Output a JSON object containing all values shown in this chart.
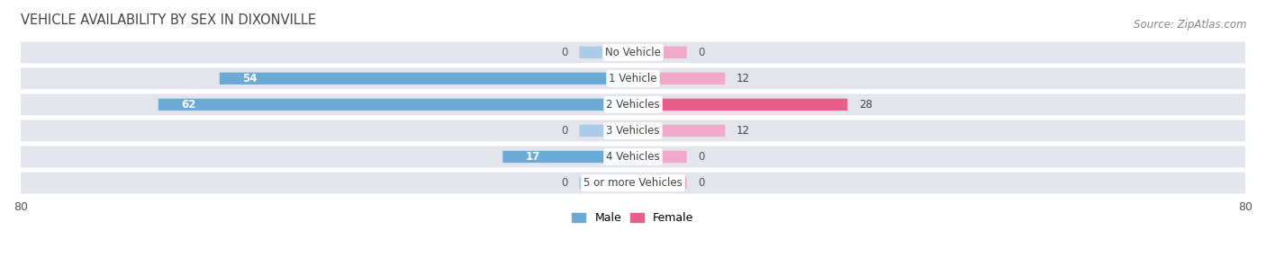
{
  "title": "VEHICLE AVAILABILITY BY SEX IN DIXONVILLE",
  "source": "Source: ZipAtlas.com",
  "categories": [
    "No Vehicle",
    "1 Vehicle",
    "2 Vehicles",
    "3 Vehicles",
    "4 Vehicles",
    "5 or more Vehicles"
  ],
  "male_values": [
    0,
    54,
    62,
    0,
    17,
    0
  ],
  "female_values": [
    0,
    12,
    28,
    12,
    0,
    0
  ],
  "male_color": "#6aaad4",
  "female_color": "#e8608a",
  "male_color_light": "#aacce8",
  "female_color_light": "#f0aac8",
  "bar_bg_color": "#e4e4ec",
  "axis_limit": 80,
  "stub_size": 7,
  "title_fontsize": 10.5,
  "label_fontsize": 8.5,
  "tick_fontsize": 9,
  "legend_fontsize": 9,
  "source_fontsize": 8.5
}
